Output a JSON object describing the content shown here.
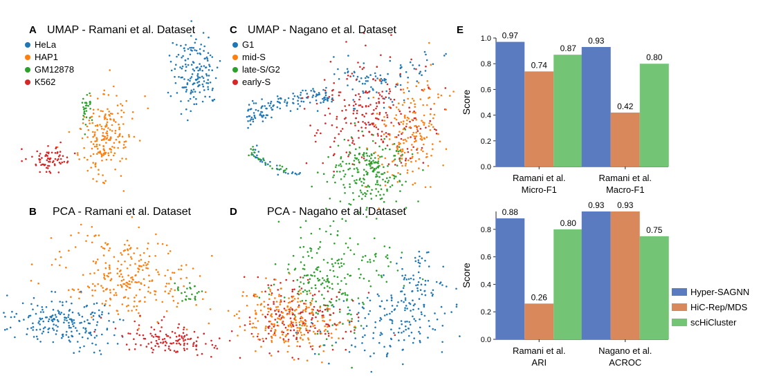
{
  "colors": {
    "HeLa": "#1f77b4",
    "HAP1": "#ff7f0e",
    "GM12878": "#2ca02c",
    "K562": "#d62728",
    "G1": "#1f77b4",
    "mid-S": "#ff7f0e",
    "late-S/G2": "#2ca02c",
    "early-S": "#d62728",
    "Hyper-SAGNN": "#5b7bc0",
    "HiC-Rep/MDS": "#d9885c",
    "scHiCluster": "#74c475",
    "axis": "#222222"
  },
  "panels": {
    "A": {
      "letter": "A",
      "title": "UMAP - Ramani et al. Dataset"
    },
    "B": {
      "letter": "B",
      "title": "PCA - Ramani et al. Dataset"
    },
    "C": {
      "letter": "C",
      "title": "UMAP - Nagano et al. Dataset"
    },
    "D": {
      "letter": "D",
      "title": "PCA - Nagano et al. Dataset"
    },
    "E": {
      "letter": "E"
    }
  },
  "legend_ramani": [
    "HeLa",
    "HAP1",
    "GM12878",
    "K562"
  ],
  "legend_nagano": [
    "G1",
    "mid-S",
    "late-S/G2",
    "early-S"
  ],
  "legend_bars": [
    "Hyper-SAGNN",
    "HiC-Rep/MDS",
    "scHiCluster"
  ],
  "chart_data": [
    {
      "type": "bar",
      "categories": [
        "Ramani et al.\nMicro-F1",
        "Ramani et al.\nMacro-F1"
      ],
      "series": [
        {
          "name": "Hyper-SAGNN",
          "values": [
            0.97,
            0.93
          ]
        },
        {
          "name": "HiC-Rep/MDS",
          "values": [
            0.74,
            0.42
          ]
        },
        {
          "name": "scHiCluster",
          "values": [
            0.87,
            0.8
          ]
        }
      ],
      "ylabel": "Score",
      "ylim": [
        0,
        1.0
      ],
      "yticks": [
        "0.0",
        "0.2",
        "0.4",
        "0.6",
        "0.8",
        "1.0"
      ],
      "value_labels": [
        [
          "0.97",
          "0.93"
        ],
        [
          "0.74",
          "0.42"
        ],
        [
          "0.87",
          "0.80"
        ]
      ]
    },
    {
      "type": "bar",
      "categories": [
        "Ramani et al.\nARI",
        "Nagano et al.\nACROC"
      ],
      "series": [
        {
          "name": "Hyper-SAGNN",
          "values": [
            0.88,
            0.93
          ]
        },
        {
          "name": "HiC-Rep/MDS",
          "values": [
            0.26,
            0.93
          ]
        },
        {
          "name": "scHiCluster",
          "values": [
            0.8,
            0.75
          ]
        }
      ],
      "ylabel": "Score",
      "ylim": [
        0,
        0.93
      ],
      "yticks": [
        "0.0",
        "0.2",
        "0.4",
        "0.6",
        "0.8"
      ],
      "value_labels": [
        [
          "0.88",
          "0.93"
        ],
        [
          "0.26",
          "0.93"
        ],
        [
          "0.80",
          "0.75"
        ]
      ],
      "legend": "right"
    }
  ]
}
